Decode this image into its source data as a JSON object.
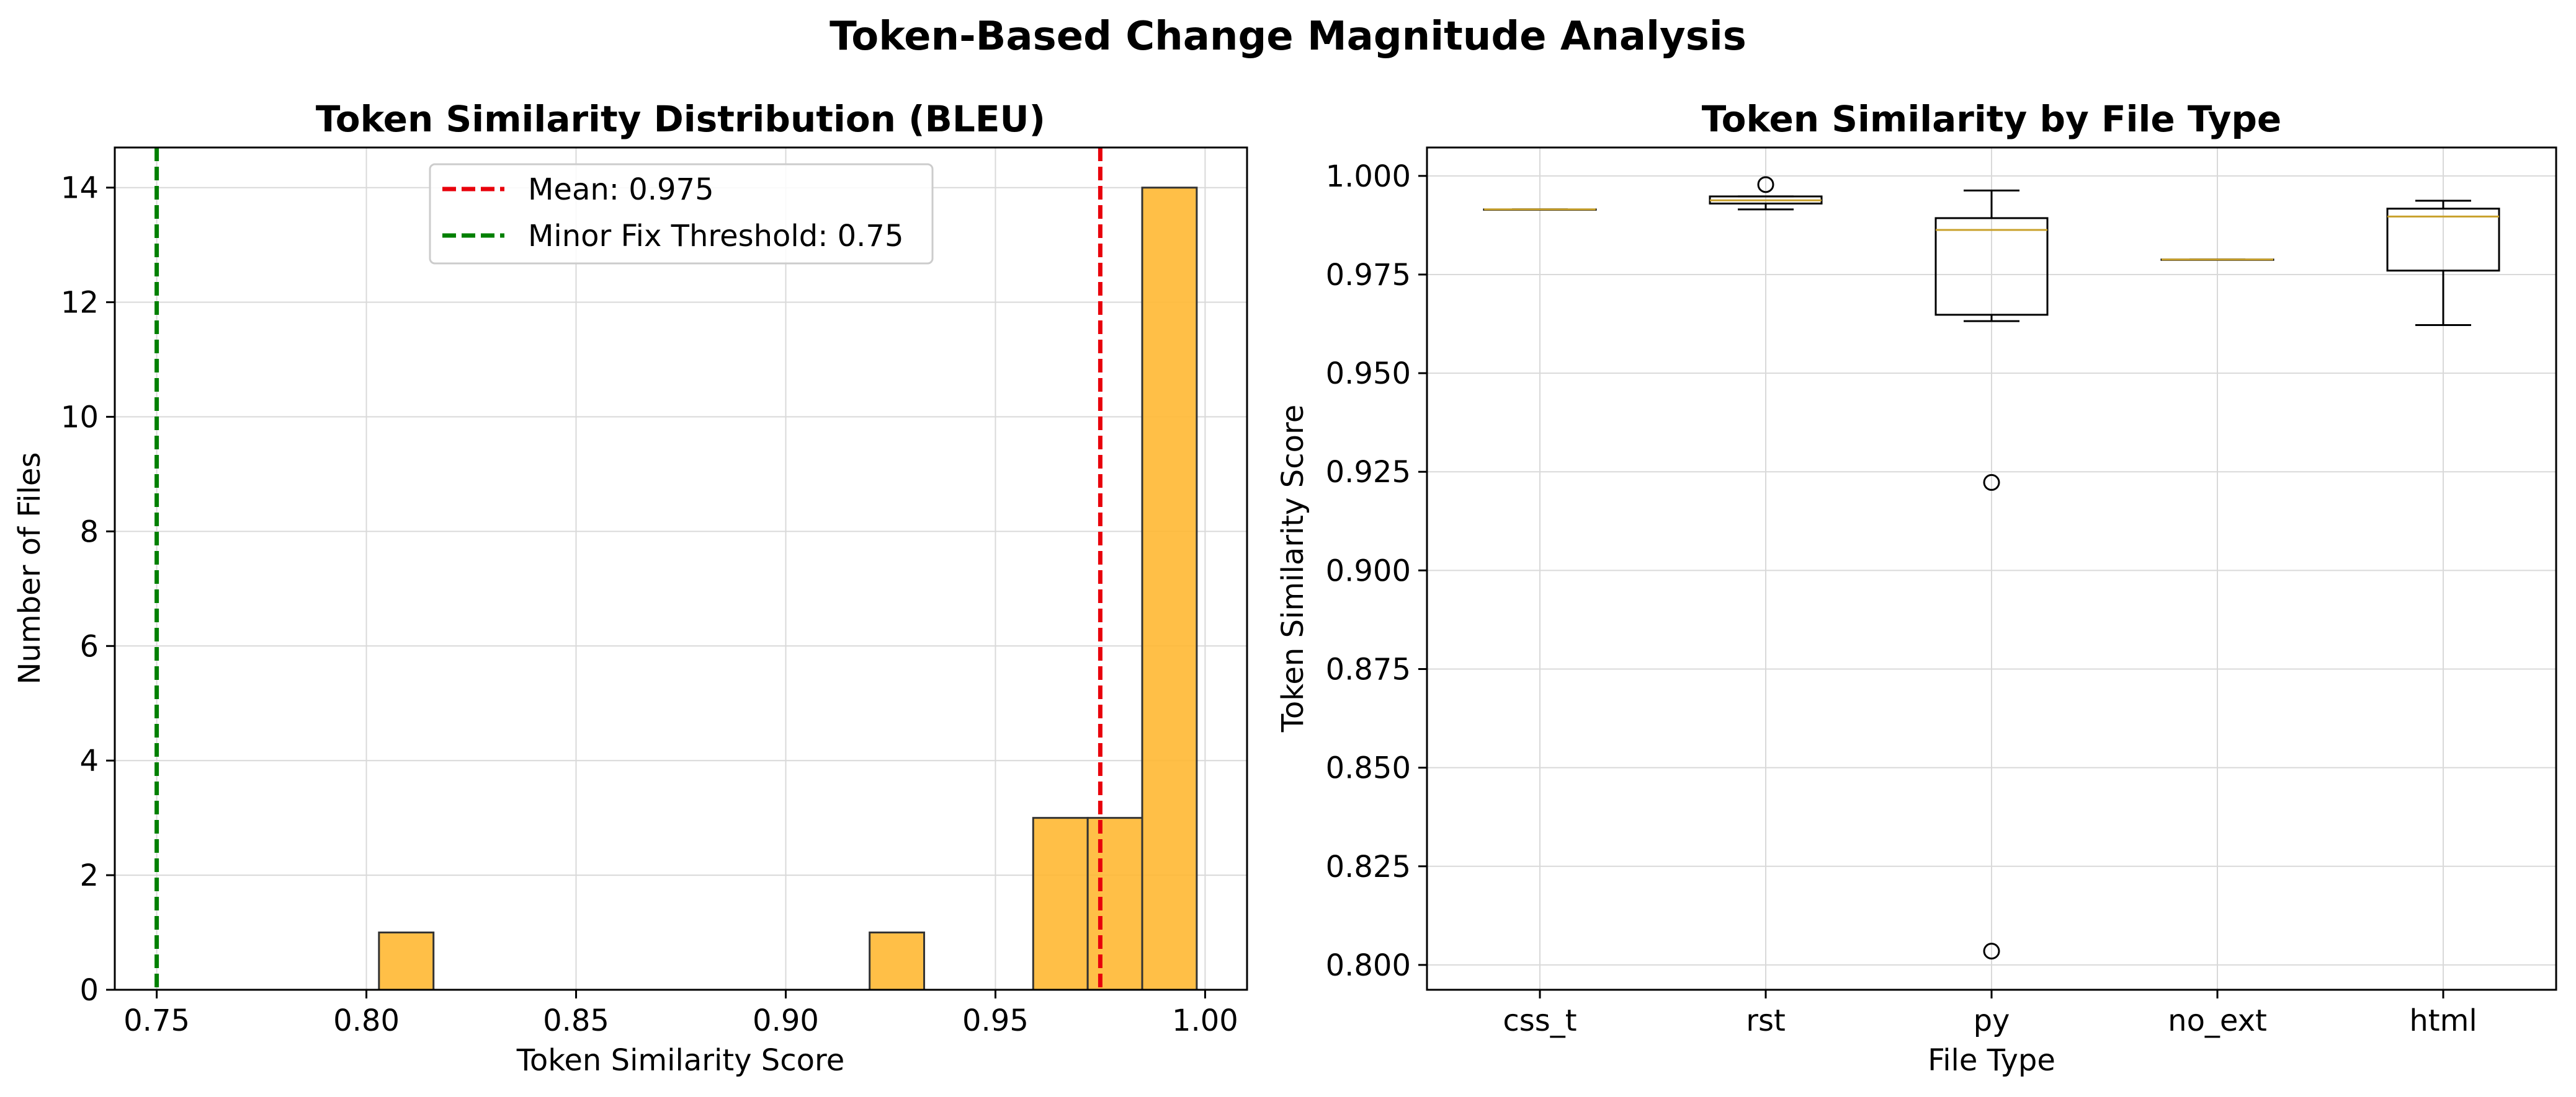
{
  "figure": {
    "suptitle": "Token-Based Change Magnitude Analysis"
  },
  "chart_data": [
    {
      "type": "histogram",
      "title": "Token Similarity Distribution (BLEU)",
      "xlabel": "Token Similarity Score",
      "ylabel": "Number of Files",
      "xlim": [
        0.74,
        1.01
      ],
      "ylim": [
        0,
        14.7
      ],
      "xticks": [
        0.75,
        0.8,
        0.85,
        0.9,
        0.95,
        1.0
      ],
      "xtick_labels": [
        "0.75",
        "0.80",
        "0.85",
        "0.90",
        "0.95",
        "1.00"
      ],
      "yticks": [
        0,
        2,
        4,
        6,
        8,
        10,
        12,
        14
      ],
      "ytick_labels": [
        "0",
        "2",
        "4",
        "6",
        "8",
        "10",
        "12",
        "14"
      ],
      "grid": true,
      "bar_color": "#FFB833",
      "bins": [
        {
          "start": 0.803,
          "end": 0.816,
          "count": 1
        },
        {
          "start": 0.92,
          "end": 0.933,
          "count": 1
        },
        {
          "start": 0.959,
          "end": 0.972,
          "count": 3
        },
        {
          "start": 0.972,
          "end": 0.985,
          "count": 3
        },
        {
          "start": 0.985,
          "end": 0.998,
          "count": 14
        }
      ],
      "vlines": [
        {
          "x": 0.975,
          "label": "Mean: 0.975",
          "color": "#e8000b"
        },
        {
          "x": 0.75,
          "label": "Minor Fix Threshold: 0.75",
          "color": "#008000"
        }
      ],
      "legend_position": "upper center"
    },
    {
      "type": "boxplot",
      "title": "Token Similarity by File Type",
      "xlabel": "File Type",
      "ylabel": "Token Similarity Score",
      "ylim": [
        0.7937,
        1.0072
      ],
      "yticks": [
        0.8,
        0.825,
        0.85,
        0.875,
        0.9,
        0.925,
        0.95,
        0.975,
        1.0
      ],
      "ytick_labels": [
        "0.800",
        "0.825",
        "0.850",
        "0.875",
        "0.900",
        "0.925",
        "0.950",
        "0.975",
        "1.000"
      ],
      "grid": true,
      "median_color": "#C8A02A",
      "categories": [
        "css_t",
        "rst",
        "py",
        "no_ext",
        "html"
      ],
      "boxes": [
        {
          "q1": 0.9915,
          "median": 0.9915,
          "q3": 0.9915,
          "whislo": 0.9915,
          "whishi": 0.9915,
          "fliers": []
        },
        {
          "q1": 0.993,
          "median": 0.9938,
          "q3": 0.9948,
          "whislo": 0.9915,
          "whishi": 0.9948,
          "fliers": [
            0.9978
          ]
        },
        {
          "q1": 0.9648,
          "median": 0.9863,
          "q3": 0.9893,
          "whislo": 0.9632,
          "whishi": 0.9963,
          "fliers": [
            0.9223,
            0.8035
          ]
        },
        {
          "q1": 0.9788,
          "median": 0.9788,
          "q3": 0.9788,
          "whislo": 0.9788,
          "whishi": 0.9788,
          "fliers": []
        },
        {
          "q1": 0.976,
          "median": 0.9897,
          "q3": 0.9917,
          "whislo": 0.9622,
          "whishi": 0.9937,
          "fliers": []
        }
      ]
    }
  ]
}
